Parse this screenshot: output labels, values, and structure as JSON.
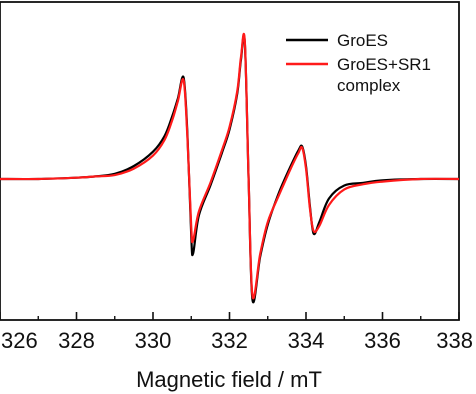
{
  "chart_data": {
    "type": "line",
    "title": "",
    "xlabel": "Magnetic field / mT",
    "ylabel": "",
    "xlim": [
      326,
      338
    ],
    "ylim": [
      -1.05,
      1.2
    ],
    "x_ticks": [
      326,
      328,
      330,
      332,
      334,
      336,
      338
    ],
    "x_tick_labels": [
      "326",
      "328",
      "330",
      "332",
      "334",
      "336",
      "338"
    ],
    "y_ticks_visible": false,
    "grid": false,
    "legend_position": "top-right",
    "legend_lines": [
      "GroES",
      "GroES+SR1",
      "complex"
    ],
    "series": [
      {
        "name": "GroES",
        "color": "#000000",
        "x": [
          326,
          327,
          328,
          328.5,
          329,
          329.5,
          330,
          330.3,
          330.5,
          330.65,
          330.8,
          330.9,
          331,
          331.05,
          331.2,
          331.5,
          331.8,
          332,
          332.2,
          332.3,
          332.4,
          332.5,
          332.6,
          332.8,
          333,
          333.3,
          333.6,
          333.8,
          333.9,
          334,
          334.1,
          334.2,
          334.35,
          334.6,
          335,
          335.5,
          336,
          337,
          338
        ],
        "y": [
          0,
          0,
          0.01,
          0.02,
          0.04,
          0.1,
          0.21,
          0.33,
          0.48,
          0.62,
          0.78,
          0.35,
          -0.45,
          -0.57,
          -0.28,
          -0.05,
          0.2,
          0.38,
          0.65,
          0.92,
          1.05,
          0.0,
          -0.93,
          -0.6,
          -0.35,
          -0.1,
          0.1,
          0.22,
          0.25,
          0.1,
          -0.2,
          -0.42,
          -0.33,
          -0.15,
          -0.05,
          -0.03,
          -0.01,
          0,
          0
        ]
      },
      {
        "name": "GroES+SR1 complex",
        "color": "#ff1a1a",
        "x": [
          326,
          327,
          328,
          328.5,
          329,
          329.5,
          330,
          330.3,
          330.5,
          330.65,
          330.8,
          330.9,
          331,
          331.05,
          331.2,
          331.5,
          331.8,
          332,
          332.2,
          332.3,
          332.4,
          332.5,
          332.6,
          332.8,
          333,
          333.3,
          333.6,
          333.8,
          333.9,
          334,
          334.1,
          334.2,
          334.35,
          334.6,
          335,
          335.5,
          336,
          337,
          338
        ],
        "y": [
          0,
          0,
          0.01,
          0.02,
          0.03,
          0.08,
          0.18,
          0.3,
          0.45,
          0.6,
          0.76,
          0.32,
          -0.38,
          -0.47,
          -0.25,
          -0.03,
          0.22,
          0.4,
          0.67,
          0.94,
          1.06,
          0.0,
          -0.9,
          -0.58,
          -0.33,
          -0.12,
          0.08,
          0.2,
          0.24,
          0.08,
          -0.22,
          -0.4,
          -0.36,
          -0.2,
          -0.08,
          -0.04,
          -0.02,
          0,
          0
        ]
      }
    ]
  }
}
